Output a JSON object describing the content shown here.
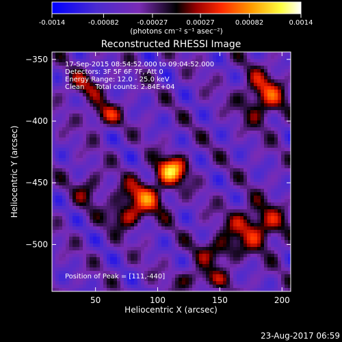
{
  "chart_data": {
    "type": "heatmap",
    "title": "Reconstructed RHESSI Image",
    "xlabel": "Heliocentric X (arcsec)",
    "ylabel": "Heliocentric Y (arcsec)",
    "xlim": [
      15,
      207
    ],
    "ylim": [
      -538,
      -344
    ],
    "xticks": [
      50,
      100,
      150,
      200
    ],
    "yticks": [
      -350,
      -400,
      -450,
      -500
    ],
    "colorbar": {
      "ticks": [
        "-0.0014",
        "-0.00082",
        "-0.00027",
        "0.00027",
        "0.00082",
        "0.0014"
      ],
      "tick_values": [
        -0.0014,
        -0.00082,
        -0.00027,
        0.00027,
        0.00082,
        0.0014
      ],
      "label": "(photons cm⁻² s⁻¹ asec⁻²)",
      "range": [
        -0.0014,
        0.0014
      ]
    },
    "info_lines": [
      "17-Sep-2015 08:54:52.000 to 09:04:52.000",
      "Detectors: 3F 5F 6F 7F, Att 0",
      "Energy Range: 12.0 - 25.0 keV",
      "Clean     Total counts: 2.84E+04"
    ],
    "peak_text": "Position of Peak = [111,-440]",
    "peak": {
      "x": 111,
      "y": -440,
      "value": 0.0014
    },
    "sources": [
      {
        "x": 111,
        "y": -440,
        "value": 0.0014,
        "sx": 9,
        "sy": 8
      },
      {
        "x": 88,
        "y": -462,
        "value": 0.00095,
        "sx": 14,
        "sy": 10
      },
      {
        "x": 74,
        "y": -478,
        "value": 0.0007,
        "sx": 10,
        "sy": 7
      },
      {
        "x": 57,
        "y": -395,
        "value": 0.0008,
        "sx": 9,
        "sy": 7
      },
      {
        "x": 40,
        "y": -372,
        "value": 0.0006,
        "sx": 10,
        "sy": 8
      },
      {
        "x": 185,
        "y": -380,
        "value": 0.00095,
        "sx": 12,
        "sy": 14
      },
      {
        "x": 180,
        "y": -485,
        "value": 0.00095,
        "sx": 16,
        "sy": 12
      },
      {
        "x": 150,
        "y": -505,
        "value": 0.0007,
        "sx": 12,
        "sy": 8
      },
      {
        "x": 135,
        "y": -528,
        "value": 0.00065,
        "sx": 14,
        "sy": 6
      },
      {
        "x": 45,
        "y": -455,
        "value": 0.0005,
        "sx": 8,
        "sy": 10
      }
    ],
    "color_scale": [
      "#0000ff",
      "#4b2bd0",
      "#7a2bb4",
      "#000000",
      "#9a0000",
      "#ff2a00",
      "#ff9a00",
      "#ffff40",
      "#ffffff"
    ]
  },
  "timestamp": "23-Aug-2017 06:59"
}
